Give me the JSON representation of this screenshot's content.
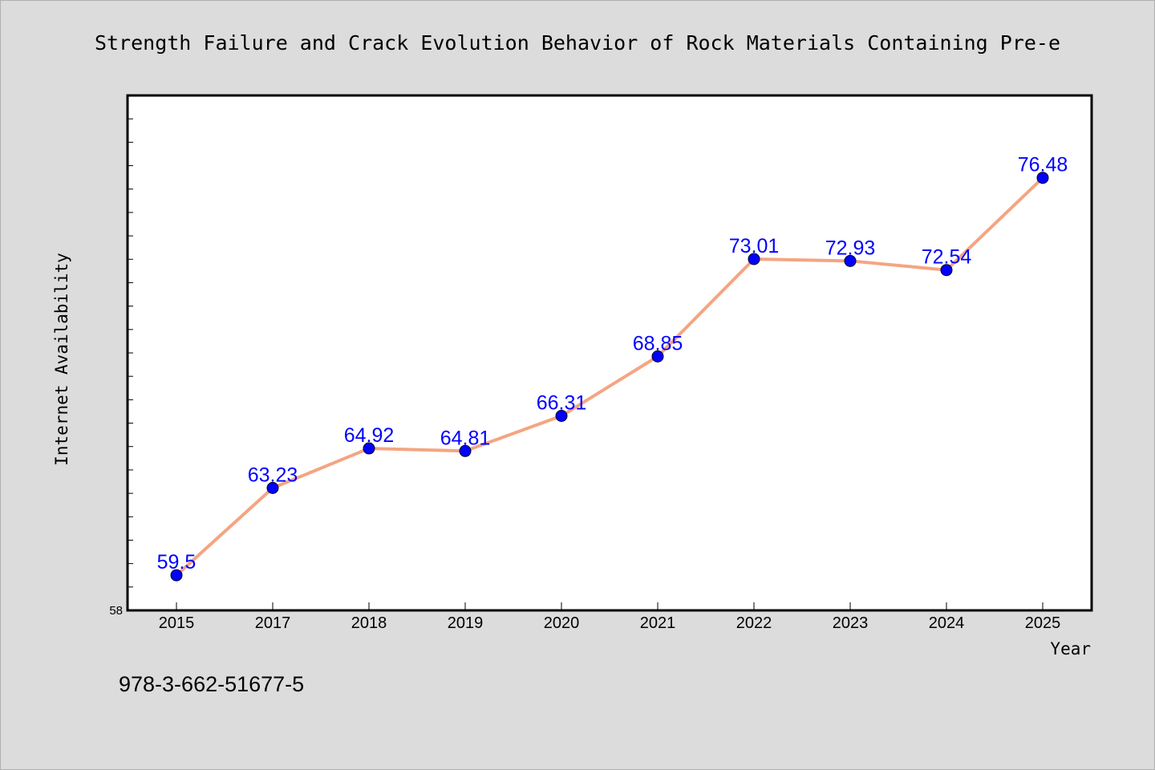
{
  "chart_data": {
    "type": "line",
    "title": "Strength Failure and Crack Evolution Behavior of Rock Materials Containing Pre-e",
    "xlabel": "Year",
    "ylabel": "Internet Availability",
    "categories": [
      "2015",
      "2017",
      "2018",
      "2019",
      "2020",
      "2021",
      "2022",
      "2023",
      "2024",
      "2025"
    ],
    "series": [
      {
        "values": [
          59.5,
          63.23,
          64.92,
          64.81,
          66.31,
          68.85,
          73.01,
          72.93,
          72.54,
          76.48
        ],
        "labels": [
          "59.5",
          "63.23",
          "64.92",
          "64.81",
          "66.31",
          "68.85",
          "73.01",
          "72.93",
          "72.54",
          "76.48"
        ]
      }
    ],
    "ylim": [
      58,
      80
    ],
    "y_tick_labels": [
      "58"
    ],
    "y_minor_step": 1,
    "grid": false,
    "legend": "none",
    "colors": {
      "background": "#dcdcdc",
      "plot_background": "#ffffff",
      "line": "#f4a582",
      "marker": "#0000ff",
      "data_label": "#0000ff"
    }
  },
  "footnote": "978-3-662-51677-5"
}
